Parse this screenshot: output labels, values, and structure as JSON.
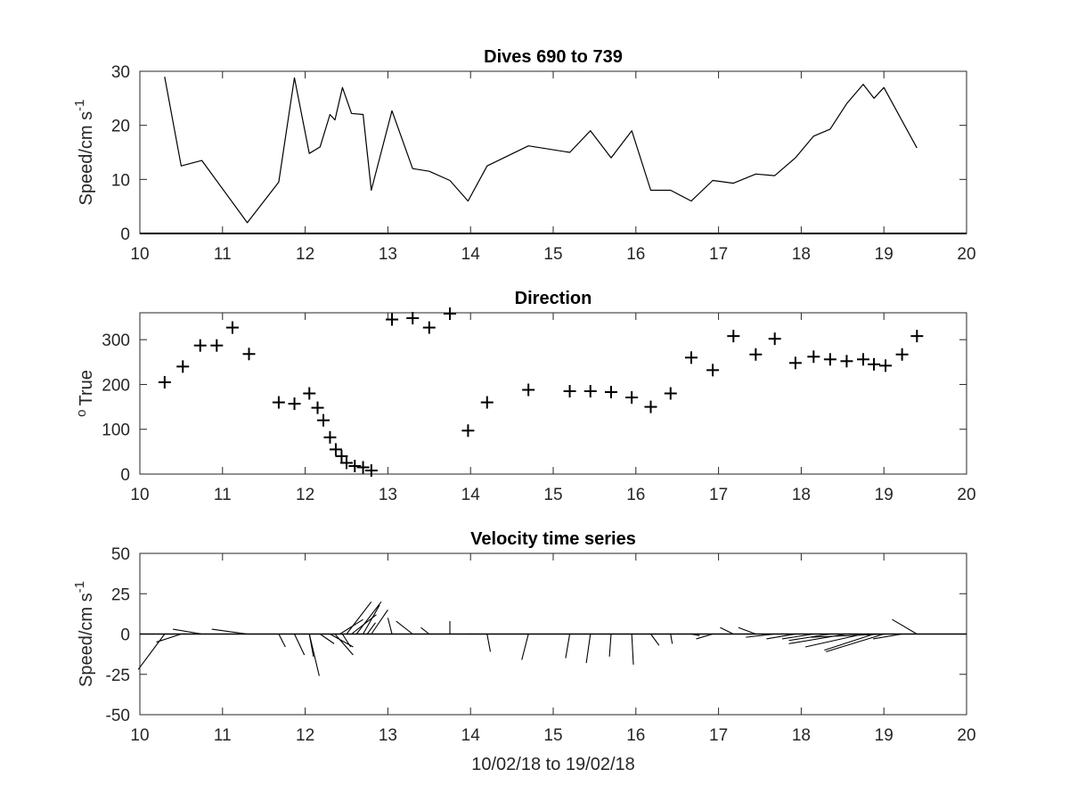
{
  "chart_data": [
    {
      "type": "line",
      "title": "Dives 690 to 739",
      "ylabel": "Speed/cm s",
      "ylabel_sup": "-1",
      "xlabel": "",
      "xlim": [
        10,
        20
      ],
      "ylim": [
        0,
        30
      ],
      "xticks": [
        10,
        11,
        12,
        13,
        14,
        15,
        16,
        17,
        18,
        19,
        20
      ],
      "yticks": [
        0,
        10,
        20,
        30
      ],
      "color": "#000000",
      "x": [
        10.3,
        10.5,
        10.75,
        11.3,
        11.68,
        11.87,
        12.05,
        12.18,
        12.3,
        12.36,
        12.45,
        12.56,
        12.7,
        12.8,
        13.05,
        13.3,
        13.5,
        13.75,
        13.97,
        14.2,
        14.7,
        15.2,
        15.45,
        15.7,
        15.95,
        16.18,
        16.42,
        16.67,
        16.93,
        17.18,
        17.45,
        17.68,
        17.93,
        18.15,
        18.35,
        18.55,
        18.75,
        18.88,
        19.0,
        19.4
      ],
      "y": [
        29,
        12.5,
        13.5,
        2,
        9.5,
        28.8,
        14.8,
        16,
        22,
        21,
        27,
        22.2,
        22,
        8,
        22.7,
        12,
        11.5,
        9.8,
        6,
        12.5,
        16.2,
        15,
        19,
        14,
        19,
        8,
        8,
        6,
        9.8,
        9.3,
        11,
        10.7,
        14,
        18,
        19.3,
        24,
        27.6,
        25,
        27,
        15.8
      ]
    },
    {
      "type": "scatter",
      "title": "Direction",
      "ylabel": "True",
      "ylabel_pre": "o",
      "xlabel": "",
      "marker": "+",
      "xlim": [
        10,
        20
      ],
      "ylim": [
        0,
        360
      ],
      "xticks": [
        10,
        11,
        12,
        13,
        14,
        15,
        16,
        17,
        18,
        19,
        20
      ],
      "yticks": [
        0,
        100,
        200,
        300
      ],
      "color": "#000000",
      "x": [
        10.3,
        10.52,
        10.73,
        10.93,
        11.12,
        11.32,
        11.68,
        11.87,
        12.05,
        12.15,
        12.22,
        12.3,
        12.37,
        12.44,
        12.5,
        12.6,
        12.7,
        12.8,
        13.05,
        13.3,
        13.5,
        13.75,
        13.97,
        14.2,
        14.7,
        15.2,
        15.45,
        15.7,
        15.95,
        16.18,
        16.42,
        16.67,
        16.93,
        17.18,
        17.45,
        17.68,
        17.93,
        18.15,
        18.35,
        18.55,
        18.75,
        18.88,
        19.02,
        19.22,
        19.4
      ],
      "y": [
        205,
        240,
        287,
        287,
        327,
        268,
        160,
        157,
        180,
        148,
        120,
        82,
        55,
        40,
        25,
        18,
        15,
        8,
        345,
        348,
        327,
        358,
        97,
        160,
        188,
        185,
        185,
        183,
        171,
        150,
        180,
        260,
        232,
        308,
        267,
        302,
        248,
        262,
        256,
        252,
        256,
        245,
        242,
        267,
        308
      ]
    },
    {
      "type": "quiver",
      "title": "Velocity time series",
      "ylabel": "Speed/cm s",
      "ylabel_sup": "-1",
      "xlabel": "10/02/18 to 19/02/18",
      "xlim": [
        10,
        20
      ],
      "ylim": [
        -50,
        50
      ],
      "xticks": [
        10,
        11,
        12,
        13,
        14,
        15,
        16,
        17,
        18,
        19,
        20
      ],
      "yticks": [
        -50,
        -25,
        0,
        25,
        50
      ],
      "ytick_labels": [
        "-50",
        "-25",
        "0",
        "25",
        "50"
      ],
      "color": "#000000",
      "note_units": "base x in days, endpoint offsets dx in days and dy in cm s^-1 as plotted",
      "vectors": [
        {
          "x": 10.3,
          "dx": -0.32,
          "dy": -22
        },
        {
          "x": 10.5,
          "dx": -0.3,
          "dy": -5
        },
        {
          "x": 10.75,
          "dx": -0.35,
          "dy": 3
        },
        {
          "x": 11.3,
          "dx": -0.43,
          "dy": 3
        },
        {
          "x": 11.68,
          "dx": 0.08,
          "dy": -8
        },
        {
          "x": 11.87,
          "dx": 0.12,
          "dy": -13
        },
        {
          "x": 12.05,
          "dx": 0.05,
          "dy": -14
        },
        {
          "x": 12.05,
          "dx": 0.12,
          "dy": -26
        },
        {
          "x": 12.18,
          "dx": 0.17,
          "dy": -6
        },
        {
          "x": 12.3,
          "dx": 0.28,
          "dy": -8
        },
        {
          "x": 12.36,
          "dx": 0.22,
          "dy": -13
        },
        {
          "x": 12.45,
          "dx": 0.1,
          "dy": -8
        },
        {
          "x": 12.42,
          "dx": 0.28,
          "dy": 9
        },
        {
          "x": 12.5,
          "dx": 0.3,
          "dy": 20
        },
        {
          "x": 12.56,
          "dx": 0.3,
          "dy": 12
        },
        {
          "x": 12.62,
          "dx": 0.3,
          "dy": 20
        },
        {
          "x": 12.7,
          "dx": 0.2,
          "dy": 18
        },
        {
          "x": 12.75,
          "dx": 0.1,
          "dy": 7
        },
        {
          "x": 12.8,
          "dx": 0.2,
          "dy": 15
        },
        {
          "x": 13.05,
          "dx": -0.05,
          "dy": 10
        },
        {
          "x": 13.3,
          "dx": -0.2,
          "dy": 8
        },
        {
          "x": 13.5,
          "dx": -0.1,
          "dy": 4
        },
        {
          "x": 13.75,
          "dx": 0.0,
          "dy": 8
        },
        {
          "x": 13.97,
          "dx": 0.14,
          "dy": 0
        },
        {
          "x": 14.2,
          "dx": 0.04,
          "dy": -11
        },
        {
          "x": 14.7,
          "dx": -0.08,
          "dy": -16
        },
        {
          "x": 15.2,
          "dx": -0.05,
          "dy": -15
        },
        {
          "x": 15.45,
          "dx": -0.05,
          "dy": -18
        },
        {
          "x": 15.7,
          "dx": -0.02,
          "dy": -14
        },
        {
          "x": 15.95,
          "dx": 0.02,
          "dy": -19
        },
        {
          "x": 16.18,
          "dx": 0.1,
          "dy": -7
        },
        {
          "x": 16.42,
          "dx": 0.02,
          "dy": -6
        },
        {
          "x": 16.67,
          "dx": 0.1,
          "dy": -1
        },
        {
          "x": 16.93,
          "dx": -0.2,
          "dy": -3
        },
        {
          "x": 17.18,
          "dx": -0.16,
          "dy": 4
        },
        {
          "x": 17.45,
          "dx": -0.21,
          "dy": 4
        },
        {
          "x": 17.68,
          "dx": -0.35,
          "dy": -2
        },
        {
          "x": 17.93,
          "dx": -0.35,
          "dy": -3
        },
        {
          "x": 18.15,
          "dx": -0.38,
          "dy": -3
        },
        {
          "x": 18.35,
          "dx": -0.5,
          "dy": -4
        },
        {
          "x": 18.55,
          "dx": -0.7,
          "dy": -6
        },
        {
          "x": 18.75,
          "dx": -0.7,
          "dy": -8
        },
        {
          "x": 18.88,
          "dx": -0.6,
          "dy": -10
        },
        {
          "x": 19.0,
          "dx": -0.7,
          "dy": -11
        },
        {
          "x": 19.02,
          "dx": -0.9,
          "dy": -2
        },
        {
          "x": 19.22,
          "dx": -0.35,
          "dy": -3
        },
        {
          "x": 19.4,
          "dx": -0.3,
          "dy": 9
        }
      ]
    }
  ]
}
